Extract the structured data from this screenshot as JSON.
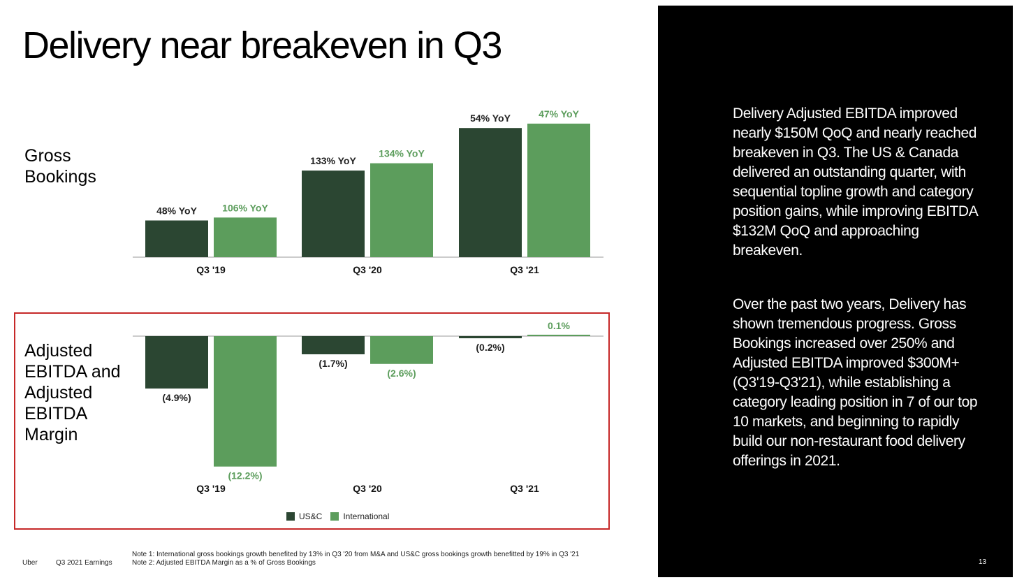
{
  "title": "Delivery near breakeven in Q3",
  "labels": {
    "gross_bookings": "Gross Bookings",
    "ebitda": "Adjusted EBITDA and Adjusted EBITDA Margin"
  },
  "colors": {
    "usc": "#2b4632",
    "intl": "#5c9d5c",
    "highlight": "#c62828"
  },
  "chart_data": [
    {
      "type": "bar",
      "title": "",
      "categories": [
        "Q3 '19",
        "Q3 '20",
        "Q3 '21"
      ],
      "series": [
        {
          "name": "US&C",
          "values": [
            25,
            59,
            88
          ],
          "labels": [
            "48% YoY",
            "133% YoY",
            "54% YoY"
          ]
        },
        {
          "name": "International",
          "values": [
            27,
            64,
            91
          ],
          "labels": [
            "106% YoY",
            "134% YoY",
            "47% YoY"
          ]
        }
      ],
      "ylim": [
        0,
        100
      ],
      "xlabel": "",
      "ylabel": "",
      "grid": false
    },
    {
      "type": "bar",
      "title": "",
      "categories": [
        "Q3 '19",
        "Q3 '20",
        "Q3 '21"
      ],
      "series": [
        {
          "name": "US&C",
          "values": [
            -4.9,
            -1.7,
            -0.2
          ],
          "labels": [
            "(4.9%)",
            "(1.7%)",
            "(0.2%)"
          ]
        },
        {
          "name": "International",
          "values": [
            -12.2,
            -2.6,
            0.1
          ],
          "labels": [
            "(12.2%)",
            "(2.6%)",
            "0.1%"
          ]
        }
      ],
      "ylim": [
        -12.2,
        0.1
      ],
      "xlabel": "",
      "ylabel": "",
      "grid": false,
      "legend": "bottom-center"
    }
  ],
  "legend": {
    "usc": "US&C",
    "intl": "International"
  },
  "footer": {
    "brand": "Uber",
    "deck": "Q3 2021 Earnings",
    "note1": "Note 1: International gross bookings growth benefited by 13% in Q3 '20 from M&A and US&C gross bookings growth benefitted by 19% in Q3 '21",
    "note2": "Note 2: Adjusted EBITDA Margin as a % of Gross Bookings"
  },
  "panel": {
    "p1": "Delivery Adjusted EBITDA improved nearly $150M QoQ and nearly reached breakeven in Q3. The US & Canada delivered an outstanding quarter, with sequential topline growth and category position gains, while improving EBITDA $132M QoQ and approaching breakeven.",
    "p2": "Over the past two years, Delivery has shown tremendous progress. Gross Bookings increased over 250% and Adjusted EBITDA improved $300M+ (Q3'19-Q3'21), while establishing a category leading position in 7 of our top 10 markets, and beginning to rapidly build our non-restaurant food delivery offerings in 2021.",
    "page": "13"
  }
}
